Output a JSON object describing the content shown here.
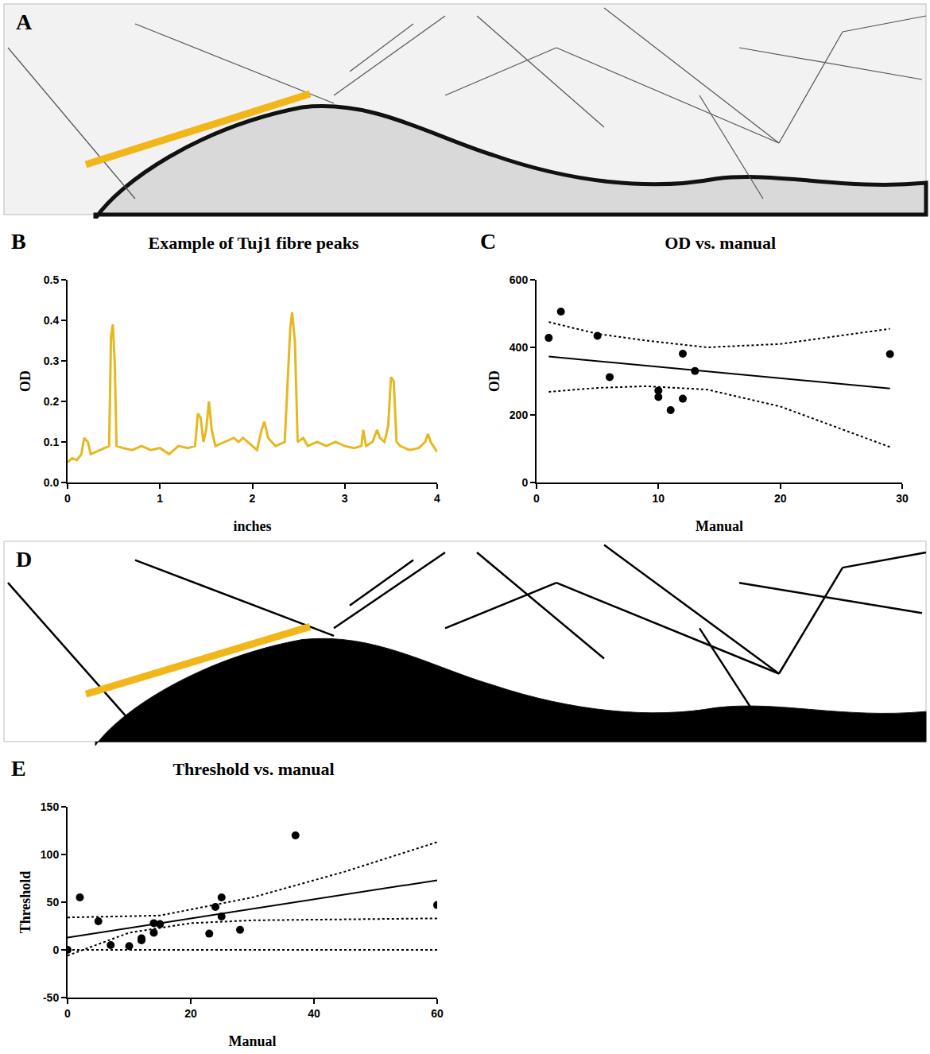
{
  "chart_data": [
    {
      "label": "B",
      "type": "line",
      "title": "Example of Tuj1 fibre peaks",
      "x_label": "inches",
      "y_label": "OD",
      "color": "#e6b820",
      "x": [
        0,
        0.05,
        0.1,
        0.15,
        0.18,
        0.22,
        0.25,
        0.3,
        0.35,
        0.4,
        0.45,
        0.47,
        0.49,
        0.51,
        0.53,
        0.6,
        0.7,
        0.8,
        0.9,
        1.0,
        1.1,
        1.2,
        1.3,
        1.38,
        1.41,
        1.44,
        1.47,
        1.5,
        1.53,
        1.56,
        1.6,
        1.7,
        1.8,
        1.85,
        1.9,
        2.0,
        2.05,
        2.1,
        2.13,
        2.17,
        2.25,
        2.35,
        2.41,
        2.43,
        2.46,
        2.49,
        2.55,
        2.6,
        2.7,
        2.8,
        2.9,
        3.0,
        3.1,
        3.18,
        3.2,
        3.23,
        3.3,
        3.35,
        3.38,
        3.43,
        3.47,
        3.5,
        3.53,
        3.56,
        3.6,
        3.7,
        3.8,
        3.87,
        3.9,
        3.93,
        4.0
      ],
      "values": [
        0.05,
        0.06,
        0.055,
        0.07,
        0.11,
        0.1,
        0.07,
        0.075,
        0.08,
        0.085,
        0.09,
        0.36,
        0.39,
        0.3,
        0.09,
        0.085,
        0.08,
        0.09,
        0.08,
        0.085,
        0.07,
        0.09,
        0.085,
        0.09,
        0.17,
        0.16,
        0.1,
        0.13,
        0.2,
        0.13,
        0.09,
        0.1,
        0.11,
        0.1,
        0.11,
        0.09,
        0.08,
        0.13,
        0.15,
        0.11,
        0.09,
        0.1,
        0.38,
        0.42,
        0.35,
        0.1,
        0.11,
        0.09,
        0.1,
        0.09,
        0.1,
        0.09,
        0.085,
        0.09,
        0.13,
        0.09,
        0.1,
        0.13,
        0.11,
        0.1,
        0.14,
        0.26,
        0.25,
        0.1,
        0.09,
        0.08,
        0.085,
        0.1,
        0.12,
        0.1,
        0.075
      ],
      "xlim": [
        0,
        4
      ],
      "xticks": [
        0,
        1,
        2,
        3,
        4
      ],
      "ylim": [
        0,
        0.5
      ],
      "yticks": [
        {
          "value": 0,
          "label": "0.0"
        },
        0.1,
        0.2,
        0.3,
        0.4,
        0.5
      ],
      "grid": false
    },
    {
      "label": "C",
      "type": "scatter",
      "title": "OD vs. manual",
      "x_label": "Manual",
      "y_label": "OD",
      "series": [
        {
          "type": "scatter",
          "marker": "circle",
          "color": "#000000",
          "x": [
            1,
            2,
            5,
            6,
            10,
            10,
            11,
            12,
            12,
            13,
            29
          ],
          "values": [
            428,
            506,
            434,
            312,
            272,
            253,
            214,
            381,
            248,
            330,
            380
          ]
        },
        {
          "type": "line",
          "line_style": "solid",
          "color": "#000000",
          "x": [
            1,
            29
          ],
          "values": [
            373,
            278
          ]
        },
        {
          "type": "line",
          "line_style": "dotted",
          "color": "#000000",
          "x": [
            1,
            5,
            9,
            14,
            20,
            29
          ],
          "values": [
            475,
            440,
            420,
            400,
            410,
            455
          ]
        },
        {
          "type": "line",
          "line_style": "dotted",
          "color": "#000000",
          "x": [
            1,
            5,
            9,
            14,
            20,
            29
          ],
          "values": [
            268,
            280,
            285,
            275,
            225,
            105
          ]
        }
      ],
      "xlim": [
        0,
        30
      ],
      "xticks": [
        0,
        10,
        20,
        30
      ],
      "ylim": [
        0,
        600
      ],
      "yticks": [
        0,
        200,
        400,
        600
      ],
      "grid": false
    },
    {
      "label": "E",
      "type": "scatter",
      "title": "Threshold vs. manual",
      "x_label": "Manual",
      "y_label": "Threshold",
      "series": [
        {
          "type": "line",
          "line_style": "dotted",
          "color": "#000000",
          "x": [
            0,
            60
          ],
          "values": [
            0,
            0
          ]
        },
        {
          "type": "scatter",
          "marker": "circle",
          "color": "#000000",
          "x": [
            0,
            2,
            5,
            7,
            10,
            12,
            12,
            14,
            14,
            15,
            23,
            24,
            25,
            25,
            28,
            37,
            60
          ],
          "values": [
            0,
            55,
            30,
            5,
            4,
            10,
            12,
            28,
            18,
            27,
            17,
            45,
            55,
            35,
            21,
            120,
            47
          ]
        },
        {
          "type": "line",
          "line_style": "solid",
          "color": "#000000",
          "x": [
            0,
            60
          ],
          "values": [
            13,
            73
          ]
        },
        {
          "type": "line",
          "line_style": "dotted",
          "color": "#000000",
          "x": [
            0,
            15,
            30,
            45,
            60
          ],
          "values": [
            34,
            36,
            55,
            82,
            113
          ]
        },
        {
          "type": "line",
          "line_style": "dotted",
          "color": "#000000",
          "x": [
            0,
            10,
            20,
            30,
            60
          ],
          "values": [
            -6,
            18,
            28,
            31,
            33
          ]
        }
      ],
      "xlim": [
        0,
        60
      ],
      "xticks": [
        0,
        20,
        40,
        60
      ],
      "ylim": [
        -50,
        150
      ],
      "yticks": [
        -50,
        0,
        50,
        100,
        150
      ],
      "grid": false
    }
  ],
  "images": [
    {
      "label": "A"
    },
    {
      "label": "D"
    }
  ]
}
